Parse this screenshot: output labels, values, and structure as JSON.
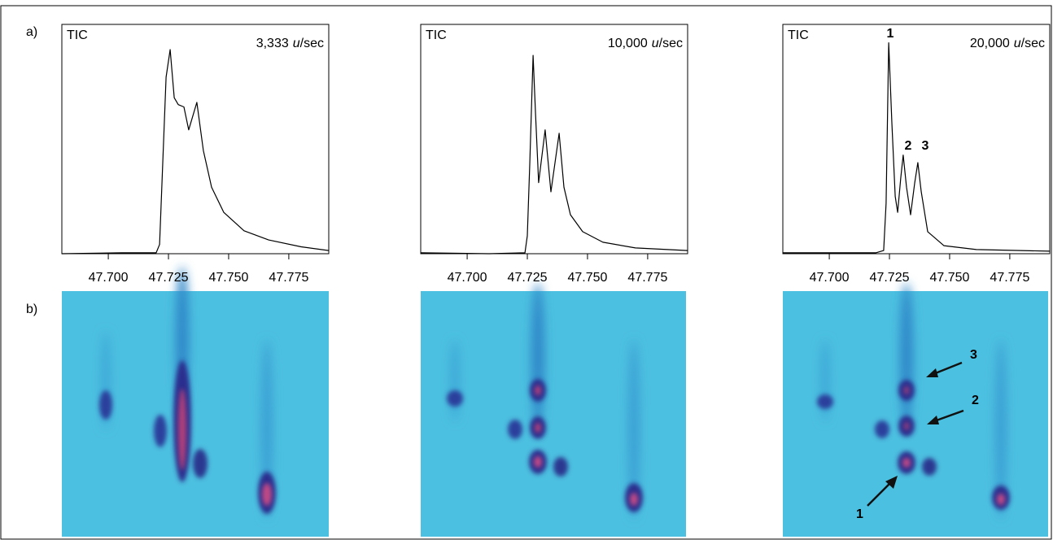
{
  "panel_labels": [
    "a)",
    "b)"
  ],
  "image_arrow_labels": [
    "3",
    "2",
    "1"
  ],
  "chart_data": [
    {
      "type": "line",
      "title": "TIC",
      "rate": "3,333",
      "rate_unit": "u",
      "rate_suffix": "/sec",
      "color": "#000000",
      "xlim": [
        47.6807,
        47.7916
      ],
      "ylim": [
        0,
        100
      ],
      "xticks": [
        {
          "value": 47.7,
          "label": "47.700"
        },
        {
          "value": 47.725,
          "label": "47.725"
        },
        {
          "value": 47.75,
          "label": "47.750"
        },
        {
          "value": 47.775,
          "label": "47.775"
        }
      ],
      "x": [
        47.6807,
        47.7057,
        47.7199,
        47.7213,
        47.724,
        47.7257,
        47.7274,
        47.7291,
        47.7314,
        47.7334,
        47.7368,
        47.7395,
        47.7429,
        47.748,
        47.7564,
        47.7666,
        47.7801,
        47.7916
      ],
      "values": [
        0,
        0.4,
        0.4,
        4,
        77,
        89,
        68,
        65,
        64,
        54,
        66,
        45,
        29,
        18,
        10,
        6,
        3,
        1.4
      ]
    },
    {
      "type": "line",
      "title": "TIC",
      "rate": "10,000",
      "rate_unit": "u",
      "rate_suffix": "/sec",
      "color": "#000000",
      "xlim": [
        47.6807,
        47.7916
      ],
      "ylim": [
        0,
        100
      ],
      "xticks": [
        {
          "value": 47.7,
          "label": "47.700"
        },
        {
          "value": 47.725,
          "label": "47.725"
        },
        {
          "value": 47.75,
          "label": "47.750"
        },
        {
          "value": 47.775,
          "label": "47.775"
        }
      ],
      "x": [
        47.6807,
        47.7091,
        47.724,
        47.725,
        47.726,
        47.7274,
        47.7284,
        47.7297,
        47.7324,
        47.7348,
        47.7382,
        47.7402,
        47.7429,
        47.748,
        47.7564,
        47.7699,
        47.7916
      ],
      "values": [
        0.4,
        0,
        0.4,
        7.8,
        39,
        86.5,
        61,
        31,
        54,
        27,
        52.5,
        29,
        17,
        9.6,
        5,
        2.5,
        1.4
      ]
    },
    {
      "type": "line",
      "title": "TIC",
      "rate": "20,000",
      "rate_unit": "u",
      "rate_suffix": "/sec",
      "color": "#000000",
      "xlim": [
        47.6807,
        47.7916
      ],
      "ylim": [
        0,
        100
      ],
      "xticks": [
        {
          "value": 47.7,
          "label": "47.700"
        },
        {
          "value": 47.725,
          "label": "47.725"
        },
        {
          "value": 47.75,
          "label": "47.750"
        },
        {
          "value": 47.775,
          "label": "47.775"
        }
      ],
      "peak_labels": [
        "1",
        "2",
        "3"
      ],
      "x": [
        47.6807,
        47.7193,
        47.7226,
        47.7236,
        47.7247,
        47.726,
        47.7274,
        47.7284,
        47.7297,
        47.7307,
        47.7321,
        47.7338,
        47.7355,
        47.7368,
        47.7382,
        47.7409,
        47.7476,
        47.7611,
        47.7916
      ],
      "values": [
        0.4,
        0.4,
        1.4,
        22,
        92,
        57,
        25,
        18,
        33,
        43,
        29,
        17,
        31,
        39.7,
        27,
        9.6,
        3.5,
        1.8,
        1.1
      ]
    }
  ]
}
